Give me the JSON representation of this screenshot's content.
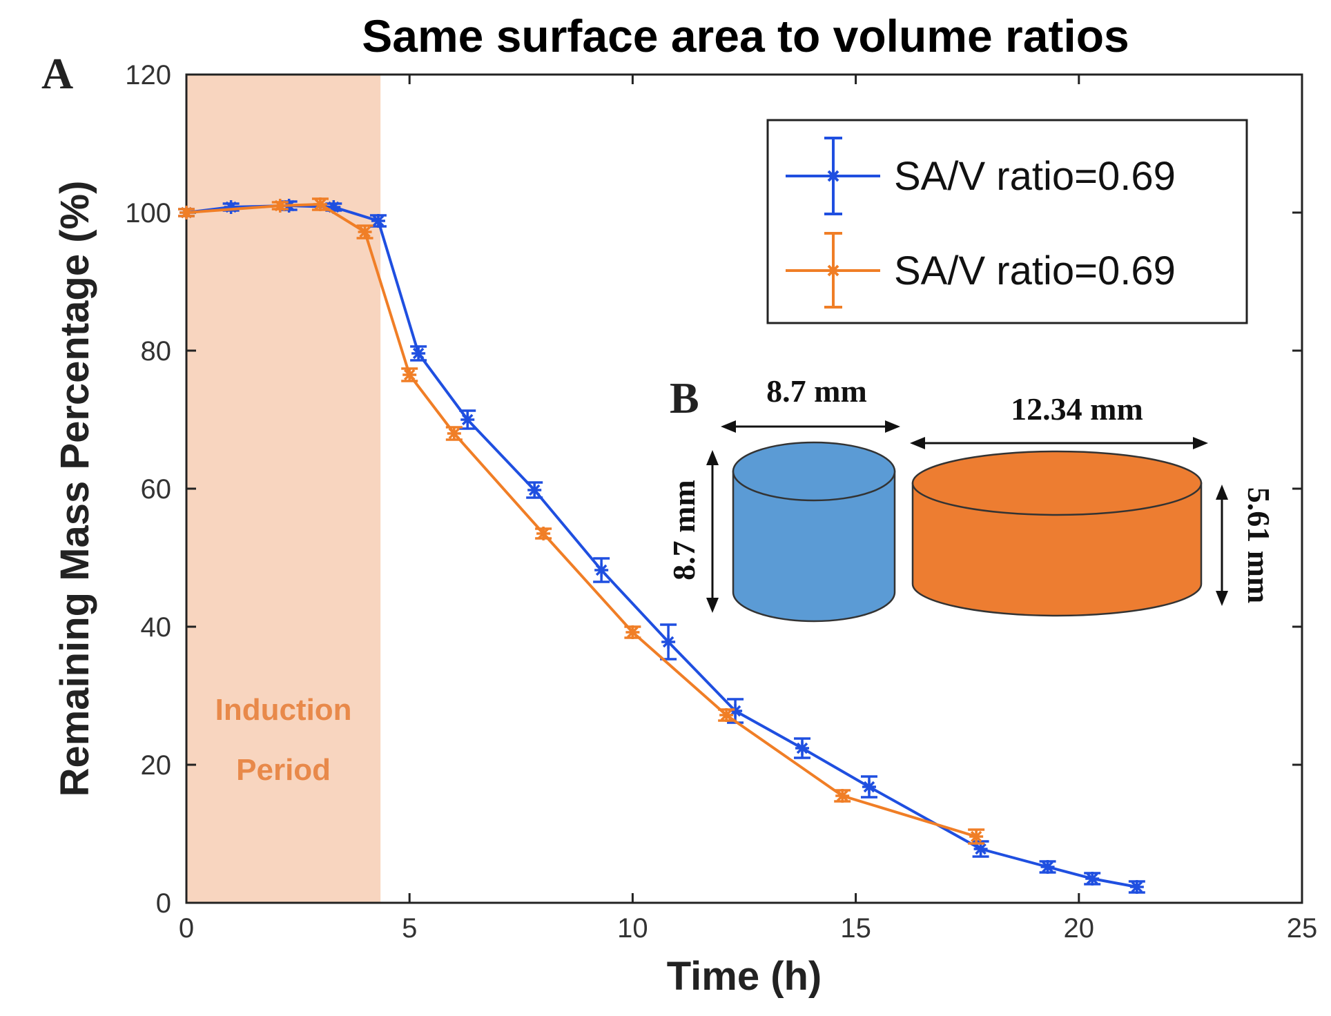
{
  "chart_data": {
    "type": "line",
    "title": "Same surface area to volume ratios",
    "xlabel": "Time (h)",
    "ylabel": "Remaining Mass Percentage (%)",
    "xlim": [
      0,
      25
    ],
    "ylim": [
      0,
      120
    ],
    "xticks": [
      "0",
      "5",
      "10",
      "15",
      "20",
      "25"
    ],
    "yticks": [
      "0",
      "20",
      "40",
      "60",
      "80",
      "100",
      "120"
    ],
    "xtick_values": [
      0,
      5,
      10,
      15,
      20,
      25
    ],
    "ytick_values": [
      0,
      20,
      40,
      60,
      80,
      100,
      120
    ],
    "grid": false,
    "legend_position": "top-right",
    "shaded_region": {
      "x_start": 0,
      "x_end": 4.35,
      "color": "#F8D5BF",
      "label_line1": "Induction",
      "label_line2": "Period"
    },
    "series": [
      {
        "name": "SA/V ratio=0.69",
        "color": "#1F4FE0",
        "x": [
          0,
          1,
          2.3,
          3.3,
          4.3,
          5.2,
          6.3,
          7.8,
          9.3,
          10.8,
          12.3,
          13.8,
          15.3,
          17.8,
          19.3,
          20.3,
          21.3
        ],
        "y": [
          100,
          100.8,
          101.0,
          100.8,
          98.8,
          79.6,
          70.0,
          59.8,
          48.2,
          37.8,
          27.8,
          22.4,
          16.8,
          7.8,
          5.2,
          3.5,
          2.3
        ],
        "error": [
          0.5,
          0.5,
          0.6,
          0.5,
          0.8,
          1.0,
          1.3,
          1.1,
          1.7,
          2.5,
          1.7,
          1.4,
          1.5,
          1.1,
          0.8,
          0.8,
          0.8
        ]
      },
      {
        "name": "SA/V ratio=0.69",
        "color": "#F07E26",
        "x": [
          0,
          2.1,
          3.0,
          4.0,
          5.0,
          6.0,
          8.0,
          10.0,
          12.1,
          14.7,
          17.7
        ],
        "y": [
          100,
          101.0,
          101.2,
          97.2,
          76.5,
          68.0,
          53.5,
          39.2,
          27.2,
          15.5,
          9.6
        ],
        "error": [
          0.5,
          0.5,
          0.8,
          0.9,
          0.9,
          0.9,
          0.7,
          0.8,
          0.8,
          0.8,
          1.0
        ]
      }
    ]
  },
  "panels": {
    "a": "A",
    "b": "B"
  },
  "inset": {
    "cylinder_small": {
      "color": "#5B9BD5",
      "width_label": "8.7 mm",
      "height_label": "8.7 mm"
    },
    "cylinder_large": {
      "color": "#ED7D31",
      "width_label": "12.34 mm",
      "height_label": "5.61 mm"
    }
  }
}
